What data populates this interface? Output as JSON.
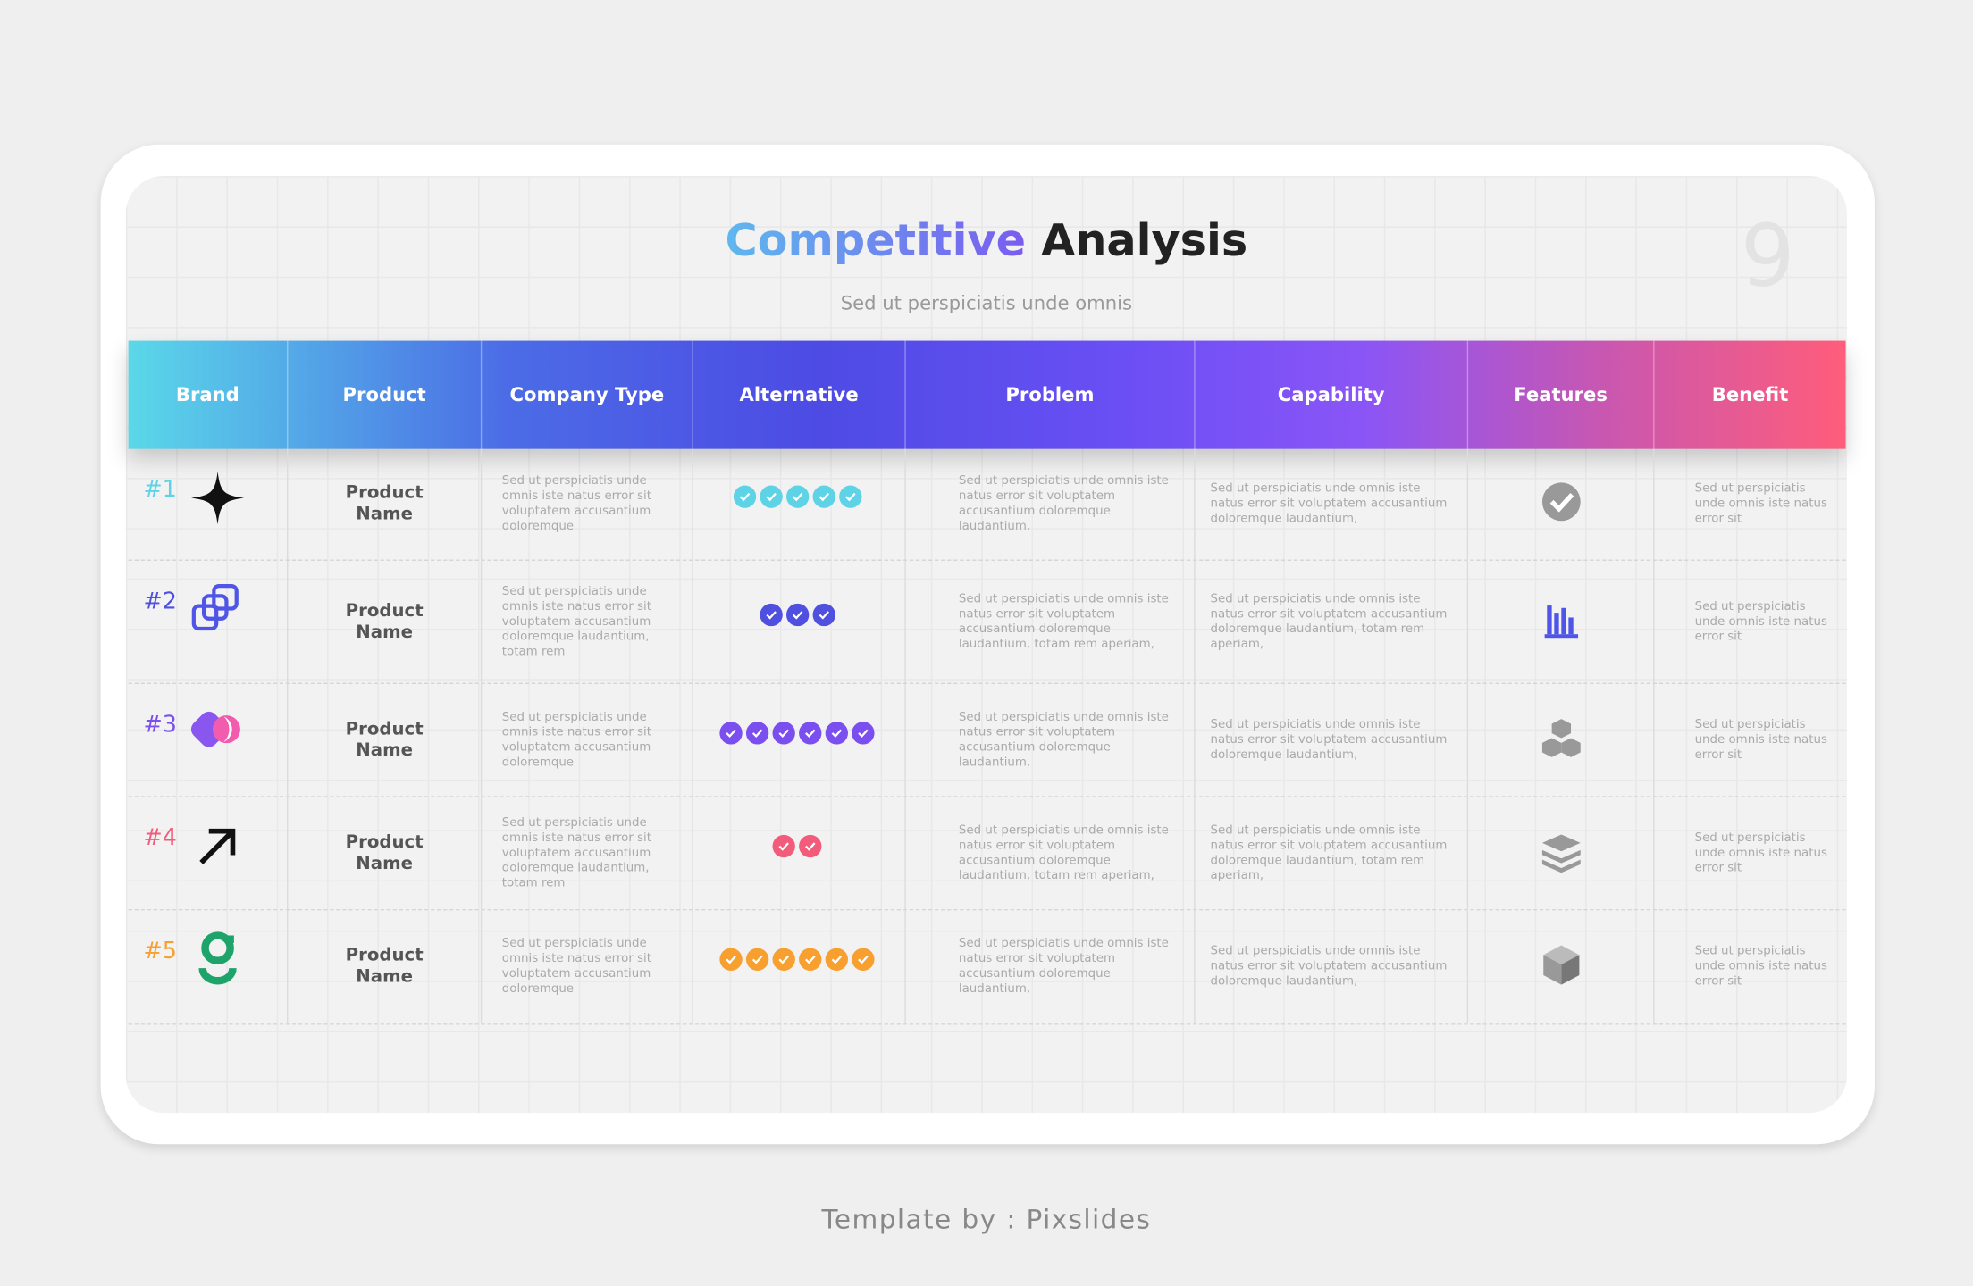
{
  "header": {
    "title_part1": "Competitive",
    "title_part2": "Analysis",
    "subtitle": "Sed ut perspiciatis unde omnis",
    "page_number": "9"
  },
  "table": {
    "columns": [
      "Brand",
      "Product",
      "Company Type",
      "Alternative",
      "Problem",
      "Capability",
      "Features",
      "Benefit"
    ],
    "rows": [
      {
        "rank": "#1",
        "rank_color": "#5fd3e6",
        "product": "Product Name",
        "company_type": "Sed ut perspiciatis unde omnis iste natus error sit voluptatem accusantium doloremque",
        "rating": 5,
        "check_color": "#5fd3e6",
        "problem": "Sed ut perspiciatis unde omnis iste natus error sit voluptatem accusantium doloremque laudantium,",
        "capability": "Sed ut perspiciatis unde omnis iste natus error sit voluptatem accusantium doloremque laudantium,",
        "benefit": "Sed ut perspiciatis unde omnis iste natus error sit"
      },
      {
        "rank": "#2",
        "rank_color": "#4f4fe0",
        "product": "Product Name",
        "company_type": "Sed ut perspiciatis unde omnis iste natus error sit voluptatem accusantium doloremque laudantium, totam rem",
        "rating": 3,
        "check_color": "#4f4fe0",
        "problem": "Sed ut perspiciatis unde omnis iste natus error sit voluptatem accusantium doloremque laudantium, totam rem aperiam,",
        "capability": "Sed ut perspiciatis unde omnis iste natus error sit voluptatem accusantium doloremque laudantium, totam rem aperiam,",
        "benefit": "Sed ut perspiciatis unde omnis iste natus error sit"
      },
      {
        "rank": "#3",
        "rank_color": "#7b4fef",
        "product": "Product Name",
        "company_type": "Sed ut perspiciatis unde omnis iste natus error sit voluptatem accusantium doloremque",
        "rating": 6,
        "check_color": "#7b4fef",
        "problem": "Sed ut perspiciatis unde omnis iste natus error sit voluptatem accusantium doloremque laudantium,",
        "capability": "Sed ut perspiciatis unde omnis iste natus error sit voluptatem accusantium doloremque laudantium,",
        "benefit": "Sed ut perspiciatis unde omnis iste natus error sit"
      },
      {
        "rank": "#4",
        "rank_color": "#f25c7a",
        "product": "Product Name",
        "company_type": "Sed ut perspiciatis unde omnis iste natus error sit voluptatem accusantium doloremque laudantium, totam rem",
        "rating": 2,
        "check_color": "#f25c7a",
        "problem": "Sed ut perspiciatis unde omnis iste natus error sit voluptatem accusantium doloremque laudantium, totam rem aperiam,",
        "capability": "Sed ut perspiciatis unde omnis iste natus error sit voluptatem accusantium doloremque laudantium, totam rem aperiam,",
        "benefit": "Sed ut perspiciatis unde omnis iste natus error sit"
      },
      {
        "rank": "#5",
        "rank_color": "#f7a030",
        "product": "Product Name",
        "company_type": "Sed ut perspiciatis unde omnis iste natus error sit voluptatem accusantium doloremque",
        "rating": 6,
        "check_color": "#f7a030",
        "problem": "Sed ut perspiciatis unde omnis iste natus error sit voluptatem accusantium doloremque laudantium,",
        "capability": "Sed ut perspiciatis unde omnis iste natus error sit voluptatem accusantium doloremque laudantium,",
        "benefit": "Sed ut perspiciatis unde omnis iste natus error sit"
      }
    ]
  },
  "footer": {
    "text": "Template by : Pixslides"
  }
}
